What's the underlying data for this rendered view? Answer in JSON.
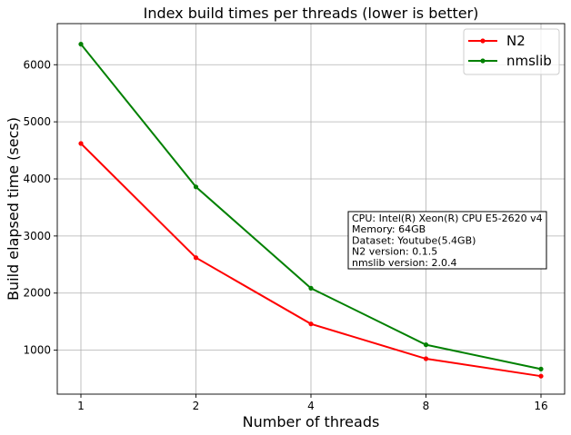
{
  "chart_data": {
    "type": "line",
    "title": "Index build times per threads (lower is better)",
    "xlabel": "Number of threads",
    "ylabel": "Build elapsed time (secs)",
    "categories": [
      "1",
      "2",
      "4",
      "8",
      "16"
    ],
    "yticks": [
      1000,
      2000,
      3000,
      4000,
      5000,
      6000
    ],
    "ylim": [
      230,
      6720
    ],
    "grid": true,
    "legend_position": "top-right",
    "series": [
      {
        "name": "N2",
        "color": "#ff0000",
        "values": [
          4620,
          2620,
          1460,
          850,
          545
        ]
      },
      {
        "name": "nmslib",
        "color": "#008000",
        "values": [
          6360,
          3860,
          2085,
          1095,
          670
        ]
      }
    ],
    "annotation_lines": [
      "CPU: Intel(R) Xeon(R) CPU E5-2620 v4",
      "Memory: 64GB",
      "Dataset: Youtube(5.4GB)",
      "N2 version: 0.1.5",
      "nmslib version: 2.0.4"
    ]
  }
}
